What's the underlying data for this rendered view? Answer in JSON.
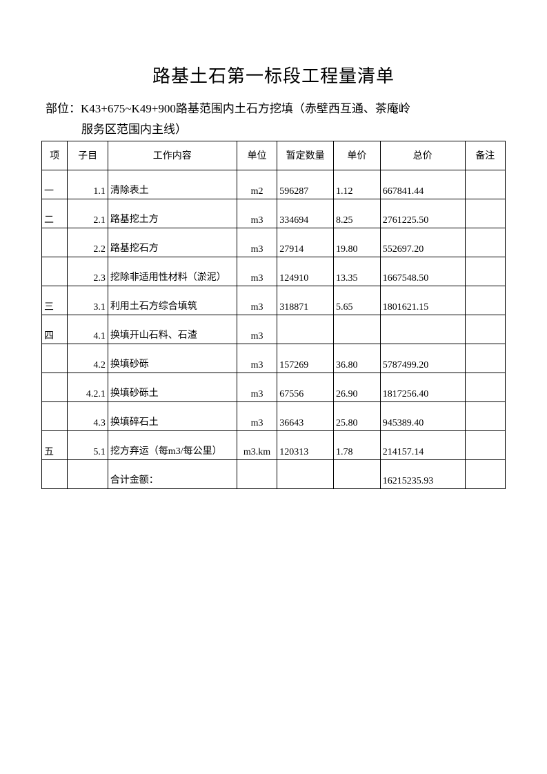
{
  "title": "路基土石第一标段工程量清单",
  "subtitle_label": "部位：",
  "subtitle_line1": "K43+675~K49+900路基范围内土石方挖填（赤壁西互通、茶庵岭",
  "subtitle_line2": "服务区范围内主线）",
  "headers": {
    "xiang": "项",
    "zimu": "子目",
    "content": "工作内容",
    "unit": "单位",
    "qty": "暂定数量",
    "price": "单价",
    "total": "总价",
    "remark": "备注"
  },
  "rows": [
    {
      "xiang": "一",
      "zimu": "1.1",
      "content": "清除表土",
      "unit": "m2",
      "qty": "596287",
      "price": "1.12",
      "total": "667841.44",
      "remark": ""
    },
    {
      "xiang": "二",
      "zimu": "2.1",
      "content": "路基挖土方",
      "unit": "m3",
      "qty": "334694",
      "price": "8.25",
      "total": "2761225.50",
      "remark": ""
    },
    {
      "xiang": "",
      "zimu": "2.2",
      "content": "路基挖石方",
      "unit": "m3",
      "qty": "27914",
      "price": "19.80",
      "total": "552697.20",
      "remark": ""
    },
    {
      "xiang": "",
      "zimu": "2.3",
      "content": "挖除非适用性材料（淤泥）",
      "unit": "m3",
      "qty": "124910",
      "price": "13.35",
      "total": "1667548.50",
      "remark": ""
    },
    {
      "xiang": "三",
      "zimu": "3.1",
      "content": "利用土石方综合填筑",
      "unit": "m3",
      "qty": "318871",
      "price": "5.65",
      "total": "1801621.15",
      "remark": ""
    },
    {
      "xiang": "四",
      "zimu": "4.1",
      "content": "换填开山石料、石渣",
      "unit": "m3",
      "qty": "",
      "price": "",
      "total": "",
      "remark": ""
    },
    {
      "xiang": "",
      "zimu": "4.2",
      "content": "换填砂砾",
      "unit": "m3",
      "qty": "157269",
      "price": "36.80",
      "total": "5787499.20",
      "remark": ""
    },
    {
      "xiang": "",
      "zimu": "4.2.1",
      "content": "换填砂砾土",
      "unit": "m3",
      "qty": "67556",
      "price": "26.90",
      "total": "1817256.40",
      "remark": ""
    },
    {
      "xiang": "",
      "zimu": "4.3",
      "content": "换填碎石土",
      "unit": "m3",
      "qty": "36643",
      "price": "25.80",
      "total": "945389.40",
      "remark": ""
    },
    {
      "xiang": "五",
      "zimu": "5.1",
      "content": "挖方弃运（每m3/每公里）",
      "unit": "m3.km",
      "qty": "120313",
      "price": "1.78",
      "total": "214157.14",
      "remark": ""
    },
    {
      "xiang": "",
      "zimu": "",
      "content": "合计金额：",
      "unit": "",
      "qty": "",
      "price": "",
      "total": "16215235.93",
      "remark": ""
    }
  ]
}
